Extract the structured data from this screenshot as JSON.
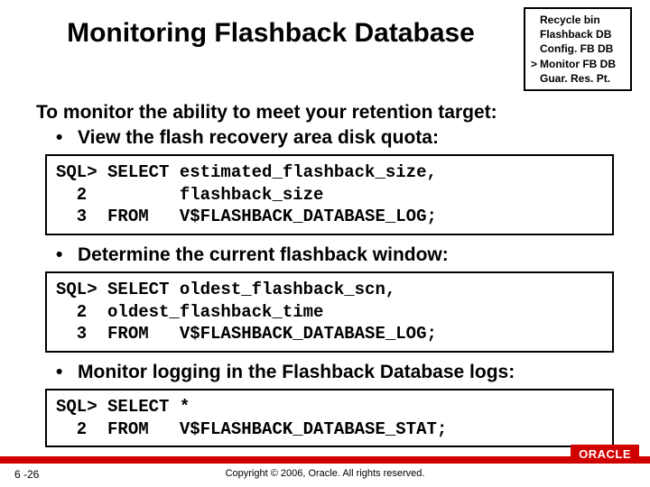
{
  "title": "Monitoring Flashback Database",
  "nav": {
    "items": [
      {
        "label": "Recycle bin",
        "active": false
      },
      {
        "label": "Flashback DB",
        "active": false
      },
      {
        "label": "Config. FB DB",
        "active": false
      },
      {
        "label": "Monitor FB DB",
        "active": true
      },
      {
        "label": "Guar. Res. Pt.",
        "active": false
      }
    ],
    "marker": ">"
  },
  "lead": "To monitor the ability to meet your retention target:",
  "bullets": [
    "View the flash recovery area disk quota:",
    "Determine the current flashback window:",
    "Monitor logging in the Flashback Database logs:"
  ],
  "code": [
    "SQL> SELECT estimated_flashback_size,\n  2         flashback_size\n  3  FROM   V$FLASHBACK_DATABASE_LOG;",
    "SQL> SELECT oldest_flashback_scn,\n  2  oldest_flashback_time\n  3  FROM   V$FLASHBACK_DATABASE_LOG;",
    "SQL> SELECT *\n  2  FROM   V$FLASHBACK_DATABASE_STAT;"
  ],
  "footer": {
    "page": "6 -26",
    "copyright": "Copyright © 2006, Oracle. All rights reserved.",
    "logo": "ORACLE"
  },
  "colors": {
    "accent": "#d00000",
    "text": "#000000",
    "background": "#ffffff"
  }
}
